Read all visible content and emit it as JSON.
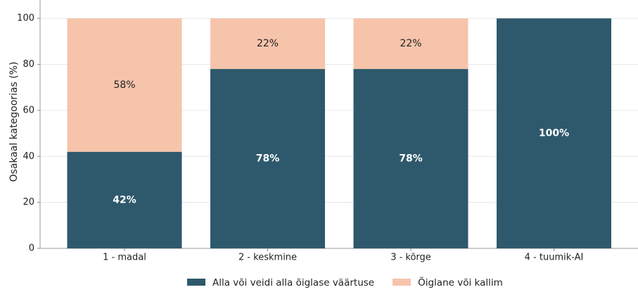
{
  "chart_data": {
    "type": "stacked-bar",
    "y_label": "Osakaal kategoorias (%)",
    "categories": [
      "1 - madal",
      "2 - keskmine",
      "3 - kõrge",
      "4 - tuumik-AI"
    ],
    "series": [
      {
        "name": "Alla või veidi alla õiglase väärtuse",
        "color": "#2e596c",
        "values": [
          42,
          78,
          78,
          100
        ],
        "value_labels": [
          "42%",
          "78%",
          "78%",
          "100%"
        ]
      },
      {
        "name": "Õiglane või kallim",
        "color": "#f6c4ab",
        "values": [
          58,
          22,
          22,
          null
        ],
        "value_labels": [
          "58%",
          "22%",
          "22%",
          null
        ]
      }
    ],
    "ylim": [
      0,
      108
    ],
    "yticks": [
      0,
      20,
      40,
      60,
      80,
      100
    ],
    "grid": true,
    "legend": "bottom"
  }
}
